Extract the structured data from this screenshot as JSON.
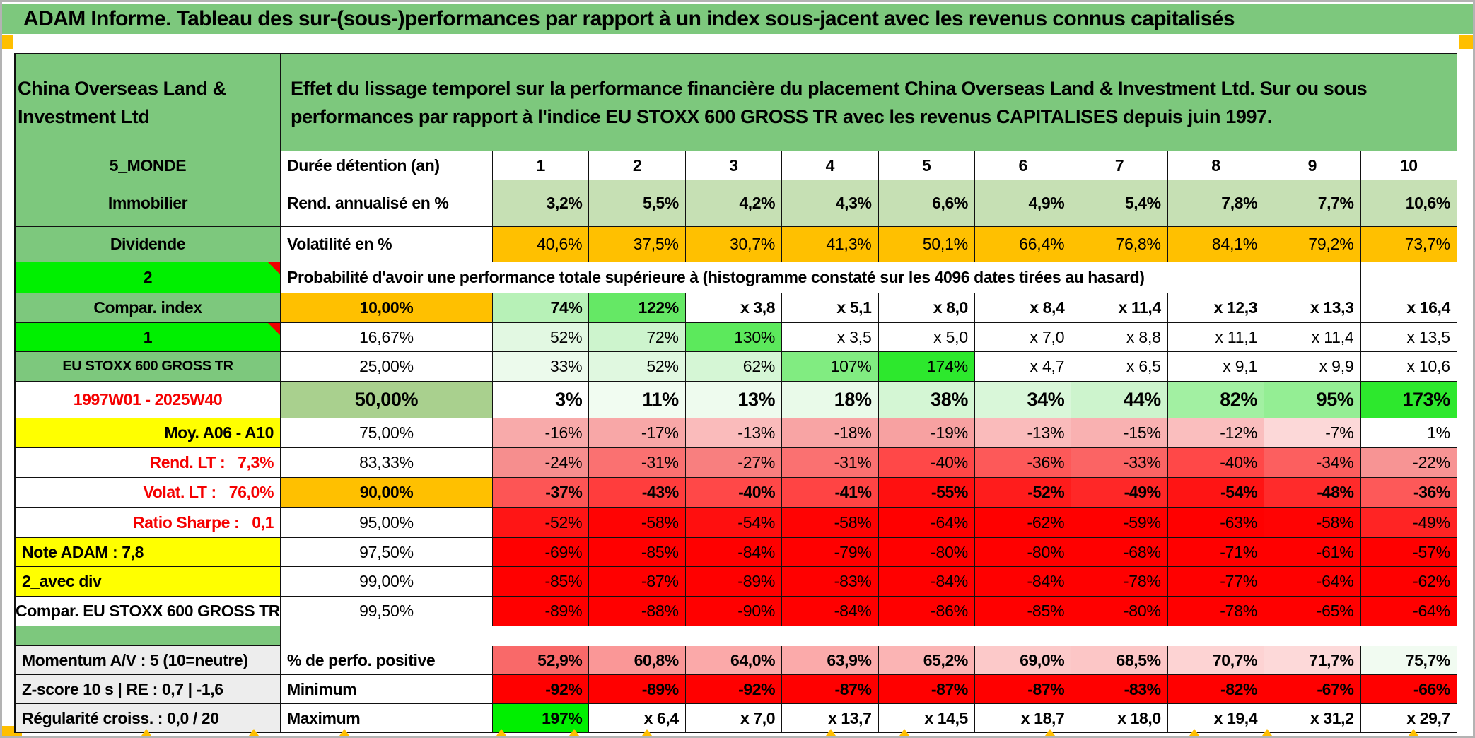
{
  "title": "ADAM Informe. Tableau des sur-(sous-)performances par rapport à un index sous-jacent avec les revenus connus capitalisés",
  "palette": {
    "header_green": "#7dc87d",
    "bright_green": "#00f000",
    "orange": "#ffc000",
    "yellow": "#ffff00",
    "olive_green": "#a9d08e",
    "grey_label": "#ededed",
    "pure_red": "#ff0000",
    "light_green_row": "#c6e0b4"
  },
  "table": {
    "corner_label": "China Overseas Land & Investment Ltd",
    "description": "Effet du lissage temporel sur la performance financière du placement China Overseas Land & Investment Ltd. Sur ou sous performances par rapport à l'indice EU STOXX 600 GROSS TR avec les revenus CAPITALISES depuis juin 1997.",
    "rows": [
      {
        "left": {
          "t": "5_MONDE",
          "bg": "green",
          "bold": true
        },
        "mid": {
          "t": "Durée détention (an)",
          "bg": "white",
          "bold": true,
          "al": "l"
        },
        "bold": true,
        "center": true,
        "cells": [
          [
            "1",
            ""
          ],
          [
            "2",
            ""
          ],
          [
            "3",
            ""
          ],
          [
            "4",
            ""
          ],
          [
            "5",
            ""
          ],
          [
            "6",
            ""
          ],
          [
            "7",
            ""
          ],
          [
            "8",
            ""
          ],
          [
            "9",
            ""
          ],
          [
            "10",
            ""
          ]
        ]
      },
      {
        "left": {
          "t": "Immobilier",
          "bg": "green",
          "bold": true
        },
        "mid": {
          "t": "Rend. annualisé en %",
          "bg": "white",
          "bold": true,
          "al": "l"
        },
        "bold": true,
        "cells": [
          [
            "3,2%",
            "#c6e0b4"
          ],
          [
            "5,5%",
            "#c6e0b4"
          ],
          [
            "4,2%",
            "#c6e0b4"
          ],
          [
            "4,3%",
            "#c6e0b4"
          ],
          [
            "6,6%",
            "#c6e0b4"
          ],
          [
            "4,9%",
            "#c6e0b4"
          ],
          [
            "5,4%",
            "#c6e0b4"
          ],
          [
            "7,8%",
            "#c6e0b4"
          ],
          [
            "7,7%",
            "#c6e0b4"
          ],
          [
            "10,6%",
            "#c6e0b4"
          ]
        ]
      },
      {
        "left": {
          "t": "Dividende",
          "bg": "green",
          "bold": true
        },
        "mid": {
          "t": "Volatilité en %",
          "bg": "white",
          "bold": true,
          "al": "l"
        },
        "cells": [
          [
            "40,6%",
            "#ffc000"
          ],
          [
            "37,5%",
            "#ffc000"
          ],
          [
            "30,7%",
            "#ffc000"
          ],
          [
            "41,3%",
            "#ffc000"
          ],
          [
            "50,1%",
            "#ffc000"
          ],
          [
            "66,4%",
            "#ffc000"
          ],
          [
            "76,8%",
            "#ffc000"
          ],
          [
            "84,1%",
            "#ffc000"
          ],
          [
            "79,2%",
            "#ffc000"
          ],
          [
            "73,7%",
            "#ffc000"
          ]
        ]
      },
      {
        "left": {
          "t": "2",
          "bg": "bright",
          "bold": true,
          "corner": true
        },
        "mid": {
          "t": "Probabilité d'avoir une performance totale supérieure à (histogramme constaté sur les 4096 dates tirées au hasard)",
          "bg": "white",
          "bold": true,
          "al": "l",
          "span": 9
        },
        "cells": [
          [
            "",
            ""
          ],
          [
            "",
            ""
          ]
        ]
      },
      {
        "left": {
          "t": "Compar. index",
          "bg": "green",
          "bold": true
        },
        "mid": {
          "t": "10,00%",
          "bg": "orange",
          "bold": true
        },
        "bold": true,
        "cells": [
          [
            "74%",
            "#b7f1b7"
          ],
          [
            "122%",
            "#65e865"
          ],
          [
            "x 3,8",
            ""
          ],
          [
            "x 5,1",
            ""
          ],
          [
            "x 8,0",
            ""
          ],
          [
            "x 8,4",
            ""
          ],
          [
            "x 11,4",
            ""
          ],
          [
            "x 12,3",
            ""
          ],
          [
            "x 13,3",
            ""
          ],
          [
            "x 16,4",
            ""
          ]
        ]
      },
      {
        "left": {
          "t": "1",
          "bg": "bright",
          "bold": true,
          "corner": true
        },
        "mid": {
          "t": "16,67%",
          "bg": "white"
        },
        "cells": [
          [
            "52%",
            "#e2f8e2"
          ],
          [
            "72%",
            "#cdf4cd"
          ],
          [
            "130%",
            "#5ce95c"
          ],
          [
            "x 3,5",
            ""
          ],
          [
            "x 5,0",
            ""
          ],
          [
            "x 7,0",
            ""
          ],
          [
            "x 8,8",
            ""
          ],
          [
            "x 11,1",
            ""
          ],
          [
            "x 11,4",
            ""
          ],
          [
            "x 13,5",
            ""
          ]
        ]
      },
      {
        "left": {
          "t": "EU STOXX 600 GROSS TR",
          "bg": "green",
          "bold": true,
          "small": true
        },
        "mid": {
          "t": "25,00%",
          "bg": "white"
        },
        "cells": [
          [
            "33%",
            "#ecfaec"
          ],
          [
            "52%",
            "#e0f8e0"
          ],
          [
            "62%",
            "#d5f6d5"
          ],
          [
            "107%",
            "#81ec81"
          ],
          [
            "174%",
            "#2de82d"
          ],
          [
            "x 4,7",
            ""
          ],
          [
            "x 6,5",
            ""
          ],
          [
            "x 9,1",
            ""
          ],
          [
            "x 9,9",
            ""
          ],
          [
            "x 10,6",
            ""
          ]
        ]
      },
      {
        "left": {
          "t": "1997W01 - 2025W40",
          "bg": "white",
          "bold": true,
          "red": true
        },
        "mid": {
          "t": "50,00%",
          "bg": "olive",
          "bold": true,
          "lg": true
        },
        "bold": true,
        "lg": true,
        "cells": [
          [
            "3%",
            "#ffffff"
          ],
          [
            "11%",
            "#f1fcf1"
          ],
          [
            "13%",
            "#eefbee"
          ],
          [
            "18%",
            "#e9fae9"
          ],
          [
            "38%",
            "#d4f6d4"
          ],
          [
            "34%",
            "#d9f7d9"
          ],
          [
            "44%",
            "#cdf4cd"
          ],
          [
            "82%",
            "#a2f0a2"
          ],
          [
            "95%",
            "#94ee94"
          ],
          [
            "173%",
            "#2de82d"
          ]
        ]
      },
      {
        "left": {
          "t": "Moy. A06 - A10",
          "bg": "yellow",
          "bold": true,
          "al": "r"
        },
        "mid": {
          "t": "75,00%",
          "bg": "white"
        },
        "cells": [
          [
            "-16%",
            "#f8aaaa"
          ],
          [
            "-17%",
            "#f8a7a7"
          ],
          [
            "-13%",
            "#fabbbb"
          ],
          [
            "-18%",
            "#f8a4a4"
          ],
          [
            "-19%",
            "#f7a1a1"
          ],
          [
            "-13%",
            "#fabbbb"
          ],
          [
            "-15%",
            "#f9b1b1"
          ],
          [
            "-12%",
            "#fabebe"
          ],
          [
            "-7%",
            "#fcd8d8"
          ],
          [
            "1%",
            "#ffffff"
          ]
        ]
      },
      {
        "left": {
          "t": "Rend. LT :   7,3%",
          "bg": "white",
          "bold": true,
          "red": true,
          "al": "r"
        },
        "mid": {
          "t": "83,33%",
          "bg": "white"
        },
        "cells": [
          [
            "-24%",
            "#f68e8e"
          ],
          [
            "-31%",
            "#fa7171"
          ],
          [
            "-27%",
            "#f87f7f"
          ],
          [
            "-31%",
            "#fa7171"
          ],
          [
            "-40%",
            "#ff4848"
          ],
          [
            "-36%",
            "#fd5959"
          ],
          [
            "-33%",
            "#fb6464"
          ],
          [
            "-40%",
            "#ff4848"
          ],
          [
            "-34%",
            "#fc5f5f"
          ],
          [
            "-22%",
            "#f79494"
          ]
        ]
      },
      {
        "left": {
          "t": "Volat. LT :   76,0%",
          "bg": "white",
          "bold": true,
          "red": true,
          "al": "r"
        },
        "mid": {
          "t": "90,00%",
          "bg": "orange",
          "bold": true
        },
        "bold": true,
        "cells": [
          [
            "-37%",
            "#fd5555"
          ],
          [
            "-43%",
            "#ff3d3d"
          ],
          [
            "-40%",
            "#ff4848"
          ],
          [
            "-41%",
            "#ff4444"
          ],
          [
            "-55%",
            "#ff1010"
          ],
          [
            "-52%",
            "#ff1c1c"
          ],
          [
            "-49%",
            "#ff2727"
          ],
          [
            "-54%",
            "#ff1414"
          ],
          [
            "-48%",
            "#ff2b2b"
          ],
          [
            "-36%",
            "#fd5959"
          ]
        ]
      },
      {
        "left": {
          "t": "Ratio Sharpe :   0,1",
          "bg": "white",
          "bold": true,
          "red": true,
          "al": "r"
        },
        "mid": {
          "t": "95,00%",
          "bg": "white"
        },
        "cells": [
          [
            "-52%",
            "#ff1515"
          ],
          [
            "-58%",
            "#ff0303"
          ],
          [
            "-54%",
            "#ff0f0f"
          ],
          [
            "-58%",
            "#ff0303"
          ],
          [
            "-64%",
            "#ff0000"
          ],
          [
            "-62%",
            "#ff0000"
          ],
          [
            "-59%",
            "#ff0000"
          ],
          [
            "-63%",
            "#ff0000"
          ],
          [
            "-58%",
            "#ff0303"
          ],
          [
            "-49%",
            "#ff2424"
          ]
        ]
      },
      {
        "left": {
          "t": "Note ADAM : 7,8",
          "bg": "yellow",
          "bold": true,
          "al": "l"
        },
        "mid": {
          "t": "97,50%",
          "bg": "white"
        },
        "cells": [
          [
            "-69%",
            "#ff0000"
          ],
          [
            "-85%",
            "#ff0000"
          ],
          [
            "-84%",
            "#ff0000"
          ],
          [
            "-79%",
            "#ff0000"
          ],
          [
            "-80%",
            "#ff0000"
          ],
          [
            "-80%",
            "#ff0000"
          ],
          [
            "-68%",
            "#ff0000"
          ],
          [
            "-71%",
            "#ff0000"
          ],
          [
            "-61%",
            "#ff0000"
          ],
          [
            "-57%",
            "#ff0000"
          ]
        ]
      },
      {
        "left": {
          "t": "2_avec div",
          "bg": "yellow",
          "bold": true,
          "al": "l"
        },
        "mid": {
          "t": "99,00%",
          "bg": "white"
        },
        "cells": [
          [
            "-85%",
            "#ff0000"
          ],
          [
            "-87%",
            "#ff0000"
          ],
          [
            "-89%",
            "#ff0000"
          ],
          [
            "-83%",
            "#ff0000"
          ],
          [
            "-84%",
            "#ff0000"
          ],
          [
            "-84%",
            "#ff0000"
          ],
          [
            "-78%",
            "#ff0000"
          ],
          [
            "-77%",
            "#ff0000"
          ],
          [
            "-64%",
            "#ff0000"
          ],
          [
            "-62%",
            "#ff0000"
          ]
        ]
      },
      {
        "left": {
          "t": "Compar. EU STOXX 600 GROSS TR",
          "bg": "white",
          "bold": true
        },
        "mid": {
          "t": "99,50%",
          "bg": "white"
        },
        "cells": [
          [
            "-89%",
            "#ff0000"
          ],
          [
            "-88%",
            "#ff0000"
          ],
          [
            "-90%",
            "#ff0000"
          ],
          [
            "-84%",
            "#ff0000"
          ],
          [
            "-86%",
            "#ff0000"
          ],
          [
            "-85%",
            "#ff0000"
          ],
          [
            "-80%",
            "#ff0000"
          ],
          [
            "-78%",
            "#ff0000"
          ],
          [
            "-65%",
            "#ff0000"
          ],
          [
            "-64%",
            "#ff0000"
          ]
        ]
      },
      {
        "left": {
          "t": "",
          "bg": "green"
        },
        "sep": true
      },
      {
        "left": {
          "t": "Momentum A/V : 5 (10=neutre)",
          "bg": "grey",
          "bold": true,
          "al": "l"
        },
        "mid": {
          "t": "% de perfo. positive",
          "bg": "white",
          "bold": true,
          "al": "l"
        },
        "bold": true,
        "cells": [
          [
            "52,9%",
            "#f96969"
          ],
          [
            "60,8%",
            "#fa9797"
          ],
          [
            "64,0%",
            "#fba9a9"
          ],
          [
            "63,9%",
            "#fbaaaa"
          ],
          [
            "65,2%",
            "#fbb4b4"
          ],
          [
            "69,0%",
            "#fcc9c9"
          ],
          [
            "68,5%",
            "#fcc6c6"
          ],
          [
            "70,7%",
            "#fdd3d3"
          ],
          [
            "71,7%",
            "#fdd9d9"
          ],
          [
            "75,7%",
            "#f1fbf1"
          ]
        ]
      },
      {
        "left": {
          "t": "Z-score 10 s | RE : 0,7 | -1,6",
          "bg": "grey",
          "bold": true,
          "al": "l"
        },
        "mid": {
          "t": "Minimum",
          "bg": "white",
          "bold": true,
          "al": "l"
        },
        "bold": true,
        "cells": [
          [
            "-92%",
            "#ff0000"
          ],
          [
            "-89%",
            "#ff0000"
          ],
          [
            "-92%",
            "#ff0000"
          ],
          [
            "-87%",
            "#ff0000"
          ],
          [
            "-87%",
            "#ff0000"
          ],
          [
            "-87%",
            "#ff0000"
          ],
          [
            "-83%",
            "#ff0000"
          ],
          [
            "-82%",
            "#ff0000"
          ],
          [
            "-67%",
            "#ff0000"
          ],
          [
            "-66%",
            "#ff0000"
          ]
        ]
      },
      {
        "left": {
          "t": "Régularité croiss. : 0,0 / 20",
          "bg": "grey",
          "bold": true,
          "al": "l"
        },
        "mid": {
          "t": "Maximum",
          "bg": "white",
          "bold": true,
          "al": "l"
        },
        "bold": true,
        "cells": [
          [
            "197%",
            "#00ef00"
          ],
          [
            "x 6,4",
            ""
          ],
          [
            "x 7,0",
            ""
          ],
          [
            "x 13,7",
            ""
          ],
          [
            "x 14,5",
            ""
          ],
          [
            "x 18,7",
            ""
          ],
          [
            "x 18,0",
            ""
          ],
          [
            "x 19,4",
            ""
          ],
          [
            "x 31,2",
            ""
          ],
          [
            "x 29,7",
            ""
          ]
        ]
      }
    ]
  }
}
